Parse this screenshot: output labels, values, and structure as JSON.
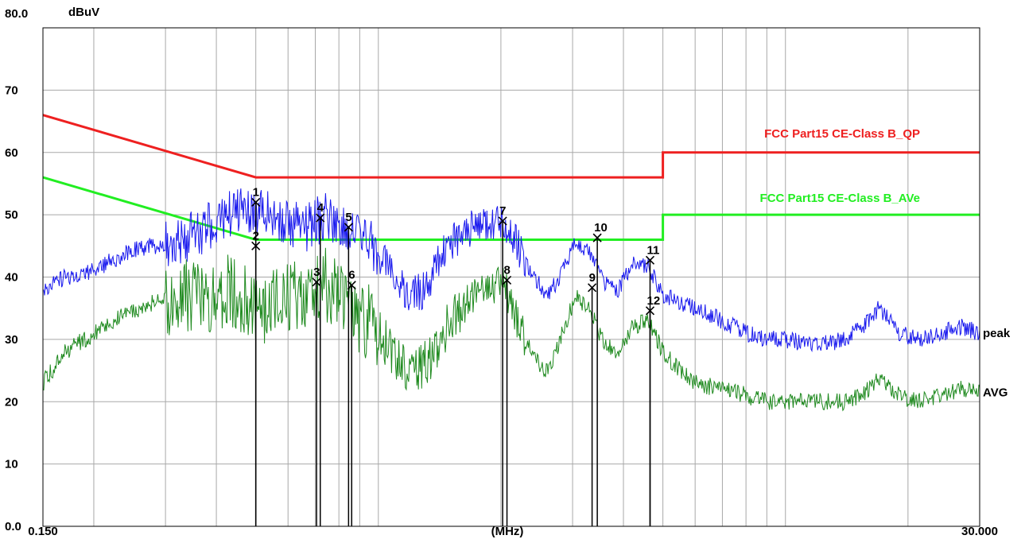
{
  "chart_data": {
    "type": "line",
    "ylabel": "dBuV",
    "xlabel": "(MHz)",
    "x_scale": "log",
    "xlim": [
      0.15,
      30.0
    ],
    "ylim": [
      0,
      80
    ],
    "y_ticks": [
      "0.0",
      "10",
      "20",
      "30",
      "40",
      "50",
      "60",
      "70",
      "80.0"
    ],
    "x_tick_labels": {
      "left": "0.150",
      "right": "30.000"
    },
    "colors": {
      "qp_limit": "#ee2020",
      "avg_limit": "#22ee22",
      "peak": "#1a1aee",
      "avg": "#1f8a1f",
      "grid": "#a8a8a8",
      "marker": "#000000"
    },
    "limits": [
      {
        "name": "FCC Part15 CE-Class B_QP",
        "color": "#ee2020",
        "points": [
          [
            0.15,
            66
          ],
          [
            0.5,
            56
          ],
          [
            5.0,
            56
          ],
          [
            5.0,
            60
          ],
          [
            30.0,
            60
          ]
        ]
      },
      {
        "name": "FCC Part15 CE-Class B_AVe",
        "color": "#22ee22",
        "points": [
          [
            0.15,
            56
          ],
          [
            0.5,
            46
          ],
          [
            5.0,
            46
          ],
          [
            5.0,
            50
          ],
          [
            30.0,
            50
          ]
        ]
      }
    ],
    "series": [
      {
        "name": "peak",
        "color": "#1a1aee",
        "x": [
          0.15,
          0.17,
          0.2,
          0.24,
          0.28,
          0.33,
          0.38,
          0.43,
          0.5,
          0.58,
          0.68,
          0.74,
          0.8,
          0.86,
          0.9,
          0.95,
          1.02,
          1.1,
          1.2,
          1.3,
          1.45,
          1.6,
          1.8,
          2.0,
          2.05,
          2.2,
          2.4,
          2.6,
          2.8,
          3.05,
          3.3,
          3.6,
          3.9,
          4.2,
          4.6,
          5.0,
          5.5,
          6.0,
          7.0,
          8.0,
          9.0,
          10.0,
          12.0,
          14.0,
          15.5,
          17.0,
          19.0,
          21.0,
          24.0,
          27.0,
          30.0
        ],
        "y": [
          38,
          40,
          41,
          44,
          45,
          46,
          48,
          50,
          51,
          49,
          48,
          50,
          49,
          47,
          48,
          46,
          43,
          40,
          37,
          38,
          44,
          47,
          48.5,
          49,
          48,
          45,
          40,
          37,
          40,
          46,
          44,
          39,
          38,
          42,
          42,
          37,
          36,
          35,
          33,
          31,
          30,
          30,
          29,
          30,
          32,
          35,
          31,
          30,
          31,
          32,
          31
        ]
      },
      {
        "name": "AVG",
        "color": "#1f8a1f",
        "x": [
          0.15,
          0.17,
          0.2,
          0.24,
          0.28,
          0.33,
          0.38,
          0.43,
          0.5,
          0.58,
          0.68,
          0.74,
          0.8,
          0.86,
          0.9,
          0.95,
          1.02,
          1.1,
          1.2,
          1.3,
          1.45,
          1.6,
          1.8,
          2.0,
          2.05,
          2.2,
          2.4,
          2.6,
          2.8,
          3.05,
          3.3,
          3.6,
          3.9,
          4.2,
          4.6,
          5.0,
          5.5,
          6.0,
          7.0,
          8.0,
          9.0,
          10.0,
          12.0,
          14.0,
          15.5,
          17.0,
          19.0,
          21.0,
          24.0,
          27.0,
          30.0
        ],
        "y": [
          23,
          28,
          31,
          34,
          36,
          37,
          37,
          38,
          35,
          36,
          38,
          39,
          37,
          34,
          33,
          33,
          30,
          27,
          25,
          26,
          31,
          35,
          38,
          39,
          38,
          33,
          27,
          25,
          30,
          37,
          35,
          29,
          28,
          32,
          33,
          28,
          25,
          23,
          22,
          21,
          20,
          20,
          20,
          20,
          21,
          24,
          21,
          20,
          21,
          22,
          21.5
        ]
      }
    ],
    "markers": [
      {
        "label": "1",
        "x": 0.5,
        "y": 52.0
      },
      {
        "label": "2",
        "x": 0.5,
        "y": 45.0
      },
      {
        "label": "3",
        "x": 0.705,
        "y": 39.2
      },
      {
        "label": "4",
        "x": 0.72,
        "y": 49.5
      },
      {
        "label": "5",
        "x": 0.845,
        "y": 48.0
      },
      {
        "label": "6",
        "x": 0.86,
        "y": 38.7
      },
      {
        "label": "7",
        "x": 2.02,
        "y": 49.0
      },
      {
        "label": "8",
        "x": 2.07,
        "y": 39.5
      },
      {
        "label": "9",
        "x": 3.35,
        "y": 38.3
      },
      {
        "label": "10",
        "x": 3.45,
        "y": 46.3
      },
      {
        "label": "11",
        "x": 4.65,
        "y": 42.7
      },
      {
        "label": "12",
        "x": 4.65,
        "y": 34.6
      }
    ]
  }
}
